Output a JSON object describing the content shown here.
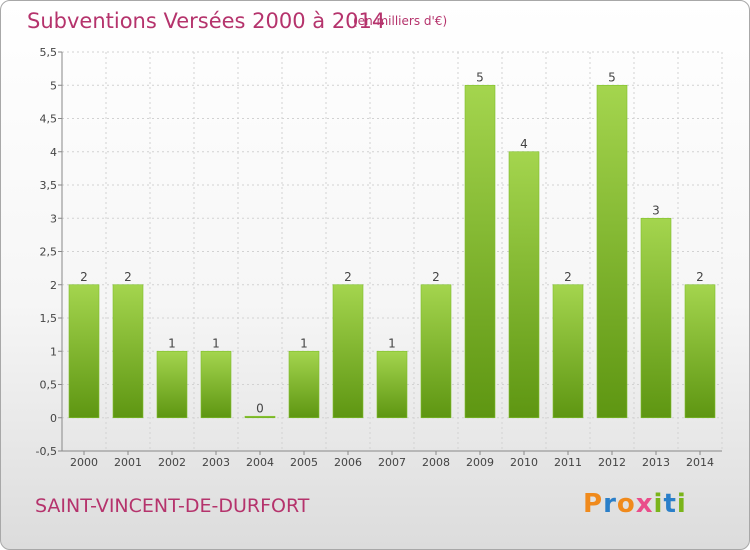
{
  "header": {
    "title": "Subventions Versées 2000 à 2014",
    "subtitle": "(en milliers d'€)"
  },
  "footer": {
    "commune": "SAINT-VINCENT-DE-DURFORT",
    "logo": "Proxiti"
  },
  "colors": {
    "title": "#b5336c",
    "bar_light": "#a4d54e",
    "bar_dark": "#5e9612",
    "logo_letters": [
      "#f08a1c",
      "#2a7fc9",
      "#f08a1c",
      "#ea4d8a",
      "#7ab41a",
      "#2a7fc9",
      "#7ab41a"
    ]
  },
  "chart_data": {
    "type": "bar",
    "title": "Subventions Versées 2000 à 2014",
    "xlabel": "",
    "ylabel": "",
    "categories": [
      "2000",
      "2001",
      "2002",
      "2003",
      "2004",
      "2005",
      "2006",
      "2007",
      "2008",
      "2009",
      "2010",
      "2011",
      "2012",
      "2013",
      "2014"
    ],
    "values": [
      2,
      2,
      1,
      1,
      0,
      1,
      2,
      1,
      2,
      5,
      4,
      2,
      5,
      3,
      2
    ],
    "ylim": [
      -0.5,
      5.5
    ],
    "yticks": [
      "-0,5",
      "0",
      "0,5",
      "1",
      "1,5",
      "2",
      "2,5",
      "3",
      "3,5",
      "4",
      "4,5",
      "5",
      "5,5"
    ],
    "grid": true
  }
}
